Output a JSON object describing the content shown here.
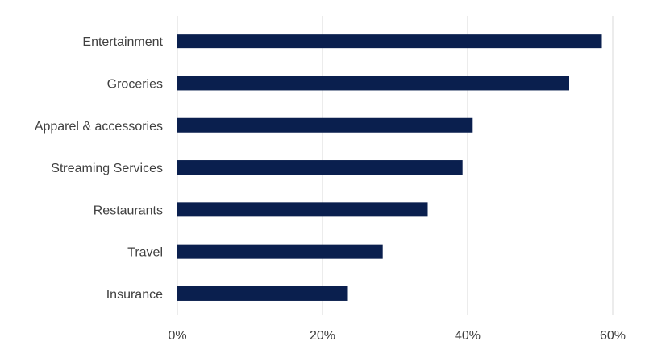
{
  "chart_data": {
    "type": "bar",
    "orientation": "horizontal",
    "title": "",
    "xlabel": "",
    "ylabel": "",
    "categories": [
      "Entertainment",
      "Groceries",
      "Apparel & accessories",
      "Streaming Services",
      "Restaurants",
      "Travel",
      "Insurance"
    ],
    "values": [
      58.5,
      54,
      40.7,
      39.3,
      34.5,
      28.3,
      23.5
    ],
    "value_unit": "%",
    "xlim": [
      0,
      60
    ],
    "x_ticks": [
      0,
      20,
      40,
      60
    ],
    "x_tick_labels": [
      "0%",
      "20%",
      "40%",
      "60%"
    ],
    "grid": "vertical",
    "legend": "none",
    "bar_color": "#0a1f4e"
  }
}
